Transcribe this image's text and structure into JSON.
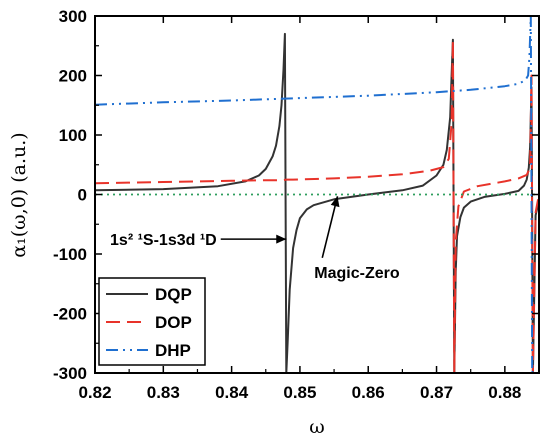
{
  "chart_data": {
    "type": "line",
    "xlabel": "ω",
    "ylabel": "α₁(ω,0) (a.u.)",
    "xlim": [
      0.82,
      0.885
    ],
    "ylim": [
      -300,
      300
    ],
    "x_ticks": [
      "0.82",
      "0.83",
      "0.84",
      "0.85",
      "0.86",
      "0.87",
      "0.88"
    ],
    "y_ticks": [
      "300",
      "200",
      "100",
      "0",
      "-100",
      "-200",
      "-300"
    ],
    "grid": false,
    "legend_position": "bottom-left",
    "series": [
      {
        "name": "DQP",
        "color": "#333333",
        "dash": "solid",
        "x": [
          0.82,
          0.83,
          0.838,
          0.842,
          0.844,
          0.845,
          0.846,
          0.8465,
          0.847,
          0.8473,
          0.8476,
          0.8478,
          0.848,
          0.8482,
          0.8485,
          0.849,
          0.8495,
          0.85,
          0.851,
          0.852,
          0.855,
          0.86,
          0.865,
          0.868,
          0.87,
          0.871,
          0.8715,
          0.872,
          0.8722,
          0.8724,
          0.8726,
          0.8728,
          0.873,
          0.8735,
          0.874,
          0.875,
          0.877,
          0.88,
          0.882,
          0.8828,
          0.8832,
          0.8835,
          0.8837,
          0.8839,
          0.8841,
          0.8845,
          0.885
        ],
        "y": [
          7,
          9,
          14,
          22,
          32,
          43,
          64,
          82,
          115,
          150,
          210,
          270,
          -300,
          -250,
          -160,
          -90,
          -60,
          -40,
          -25,
          -18,
          -8,
          0,
          7,
          15,
          32,
          50,
          75,
          130,
          200,
          260,
          -300,
          -130,
          -70,
          -38,
          -22,
          -12,
          -4,
          1,
          6,
          15,
          25,
          45,
          80,
          180,
          -300,
          -35,
          -10
        ]
      },
      {
        "name": "DOP",
        "color": "#e8332a",
        "dash": "14,7",
        "x": [
          0.82,
          0.83,
          0.84,
          0.845,
          0.8475,
          0.848,
          0.849,
          0.855,
          0.86,
          0.865,
          0.869,
          0.871,
          0.8718,
          0.8722,
          0.8724,
          0.8726,
          0.8728,
          0.8732,
          0.874,
          0.876,
          0.88,
          0.882,
          0.8832,
          0.8837,
          0.8839,
          0.8841,
          0.8845,
          0.885
        ],
        "y": [
          19,
          21,
          23,
          24,
          24,
          25,
          25,
          27,
          30,
          34,
          40,
          46,
          60,
          120,
          260,
          -300,
          -80,
          -20,
          5,
          14,
          22,
          27,
          33,
          45,
          200,
          -300,
          -30,
          0
        ]
      },
      {
        "name": "DHP",
        "color": "#1f6fd0",
        "dash": "12,5,2,5,2,5",
        "x": [
          0.82,
          0.83,
          0.84,
          0.85,
          0.86,
          0.87,
          0.875,
          0.88,
          0.882,
          0.883,
          0.8834,
          0.8836,
          0.8838,
          0.884,
          0.8842
        ],
        "y": [
          151,
          155,
          158,
          162,
          166,
          172,
          176,
          182,
          186,
          192,
          200,
          230,
          300,
          -300,
          -290
        ]
      },
      {
        "name": "",
        "color": "#2e9e5e",
        "dash": "2,4",
        "x": [
          0.82,
          0.885
        ],
        "y": [
          0,
          0
        ]
      }
    ],
    "annotations": [
      {
        "text": "1s² ¹S-1s3d ¹D",
        "x": 0.8222,
        "y": -75,
        "arrow_to": [
          0.848,
          -75
        ]
      },
      {
        "text": "Magic-Zero",
        "x": 0.8521,
        "y": -130,
        "arrow_to": [
          0.8555,
          -3
        ]
      }
    ]
  }
}
